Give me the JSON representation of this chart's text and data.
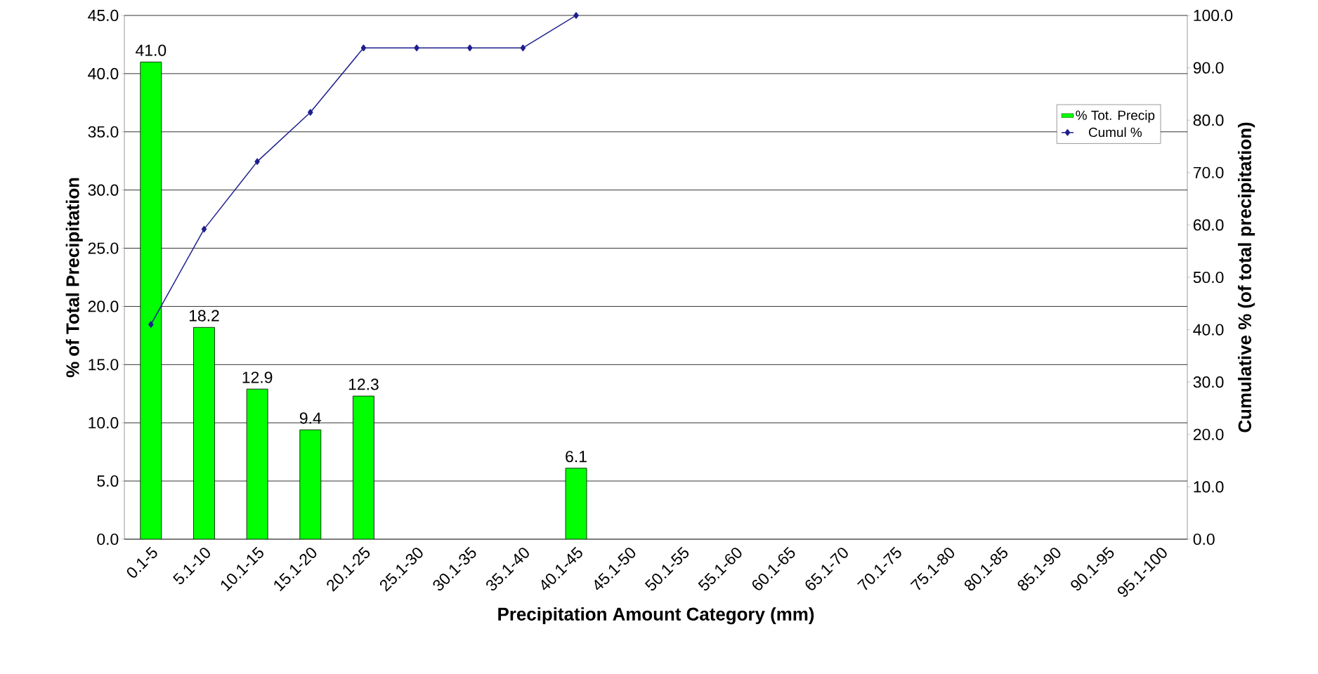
{
  "chart_data": {
    "type": "bar",
    "xlabel": "Precipitation Amount Category (mm)",
    "ylabel": "% of Total Precipitation",
    "y2label": "Cumulative % (of total precipitation)",
    "categories": [
      "0.1-5",
      "5.1-10",
      "10.1-15",
      "15.1-20",
      "20.1-25",
      "25.1-30",
      "30.1-35",
      "35.1-40",
      "40.1-45",
      "45.1-50",
      "50.1-55",
      "55.1-60",
      "60.1-65",
      "65.1-70",
      "70.1-75",
      "75.1-80",
      "80.1-85",
      "85.1-90",
      "90.1-95",
      "95.1-100"
    ],
    "series": [
      {
        "name": "% Tot. Precip",
        "color": "#00ff00",
        "values": [
          41.0,
          18.2,
          12.9,
          9.4,
          12.3,
          null,
          null,
          null,
          6.1,
          null,
          null,
          null,
          null,
          null,
          null,
          null,
          null,
          null,
          null,
          null
        ],
        "value_labels": [
          "41.0",
          "18.2",
          "12.9",
          "9.4",
          "12.3",
          null,
          null,
          null,
          "6.1",
          null,
          null,
          null,
          null,
          null,
          null,
          null,
          null,
          null,
          null,
          null
        ]
      },
      {
        "name": "Cumul %",
        "type": "line",
        "axis": "y2",
        "color": "#1f1f8f",
        "marker": "diamond",
        "line_style": "solid",
        "values": [
          41.0,
          59.2,
          72.1,
          81.5,
          93.8,
          93.8,
          93.8,
          93.8,
          100.0,
          null,
          null,
          null,
          null,
          null,
          null,
          null,
          null,
          null,
          null,
          null
        ]
      }
    ],
    "ylim": [
      0,
      45
    ],
    "yticks": [
      {
        "value": 0,
        "label": "0.0"
      },
      {
        "value": 5,
        "label": "5.0"
      },
      {
        "value": 10,
        "label": "10.0"
      },
      {
        "value": 15,
        "label": "15.0"
      },
      {
        "value": 20,
        "label": "20.0"
      },
      {
        "value": 25,
        "label": "25.0"
      },
      {
        "value": 30,
        "label": "30.0"
      },
      {
        "value": 35,
        "label": "35.0"
      },
      {
        "value": 40,
        "label": "40.0"
      },
      {
        "value": 45,
        "label": "45.0"
      }
    ],
    "y2lim": [
      0,
      100
    ],
    "y2ticks": [
      {
        "value": 0,
        "label": "0.0"
      },
      {
        "value": 10,
        "label": "10.0"
      },
      {
        "value": 20,
        "label": "20.0"
      },
      {
        "value": 30,
        "label": "30.0"
      },
      {
        "value": 40,
        "label": "40.0"
      },
      {
        "value": 50,
        "label": "50.0"
      },
      {
        "value": 60,
        "label": "60.0"
      },
      {
        "value": 70,
        "label": "70.0"
      },
      {
        "value": 80,
        "label": "80.0"
      },
      {
        "value": 90,
        "label": "90.0"
      },
      {
        "value": 100,
        "label": "100.0"
      }
    ],
    "grid": "y",
    "legend": "top right"
  }
}
